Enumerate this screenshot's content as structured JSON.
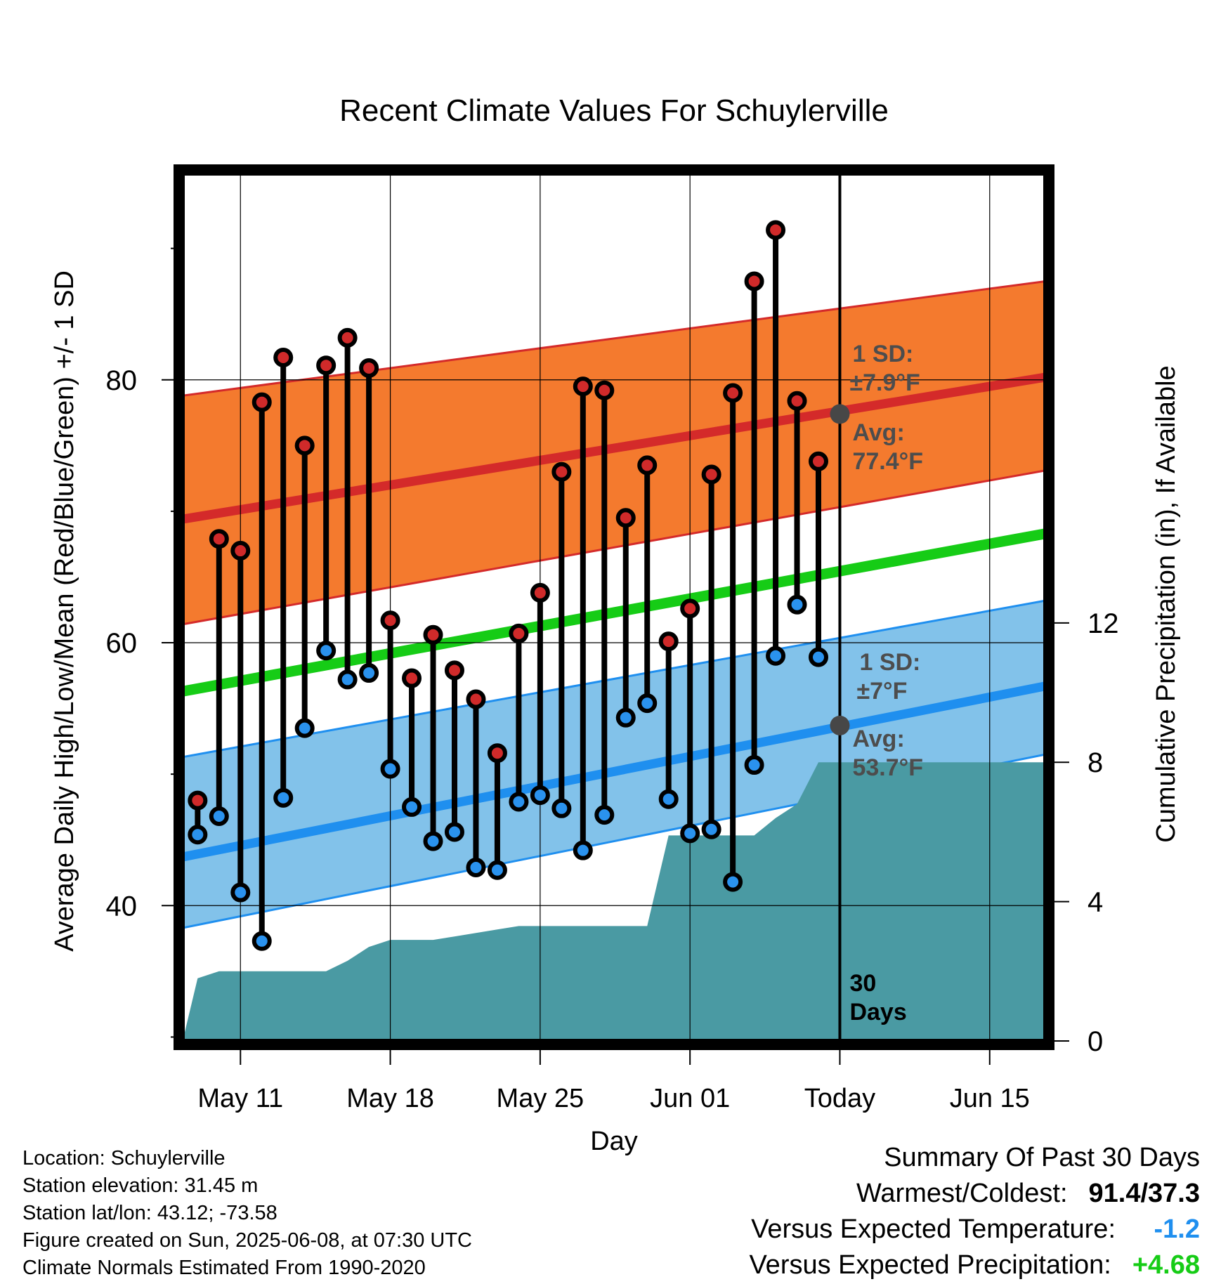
{
  "chart_data": {
    "type": "line",
    "title": "Recent Climate Values For Schuylerville",
    "xlabel": "Day",
    "ylabel_left": "Average Daily High/Low/Mean (Red/Blue/Green) +/- 1 SD",
    "ylabel_right": "Cumulative Precipitation (in), If Available",
    "x_ticks": [
      {
        "day": 11,
        "label": "May 11"
      },
      {
        "day": 18,
        "label": "May 18"
      },
      {
        "day": 25,
        "label": "May 25"
      },
      {
        "day": 32,
        "label": "Jun 01"
      },
      {
        "day": 39,
        "label": "Today"
      },
      {
        "day": 46,
        "label": "Jun 15"
      }
    ],
    "y_left_ticks": [
      40,
      60,
      80
    ],
    "y_right_ticks": [
      {
        "value": 0,
        "label": "0"
      },
      {
        "value": 4,
        "label": "4"
      },
      {
        "value": 8,
        "label": "8"
      },
      {
        "value": 12,
        "label": "12"
      }
    ],
    "xlim": [
      8.3,
      48.6
    ],
    "ylim": [
      29.7,
      95.7
    ],
    "y_right_lim": [
      0,
      24.9
    ],
    "grid": true,
    "colors": {
      "high_band": "#f47a2e",
      "high_line": "#d42a2a",
      "low_band": "#82c2ea",
      "low_line": "#1f8fef",
      "mean_line": "#16cc16",
      "precip": "#4a9aa3",
      "high_marker": "#d02a2a",
      "low_marker": "#2a92ee",
      "today_marker": "#474747"
    },
    "normals": {
      "x": [
        8.3,
        48.6
      ],
      "high_mean": [
        69.4,
        80.2
      ],
      "high_sd_upper": [
        78.8,
        87.5
      ],
      "high_sd_lower": [
        61.4,
        73.1
      ],
      "low_mean": [
        43.7,
        56.7
      ],
      "low_sd_upper": [
        51.3,
        63.2
      ],
      "low_sd_lower": [
        38.3,
        51.5
      ],
      "mean_line": [
        56.3,
        68.3
      ]
    },
    "daily": {
      "day": [
        9,
        10,
        11,
        12,
        13,
        14,
        15,
        16,
        17,
        18,
        19,
        20,
        21,
        22,
        23,
        24,
        25,
        26,
        27,
        28,
        29,
        30,
        31,
        32,
        33,
        34,
        35,
        36,
        37,
        38
      ],
      "high": [
        48.0,
        67.9,
        67.0,
        78.3,
        81.7,
        75.0,
        81.1,
        83.2,
        80.9,
        61.7,
        57.3,
        60.6,
        57.9,
        55.7,
        51.6,
        60.7,
        63.8,
        73.0,
        79.5,
        79.2,
        69.5,
        73.5,
        60.1,
        62.6,
        72.8,
        79.0,
        87.5,
        91.4,
        78.4,
        73.8
      ],
      "low": [
        45.4,
        46.8,
        41.0,
        37.3,
        48.2,
        53.5,
        59.4,
        57.2,
        57.7,
        50.4,
        47.5,
        44.9,
        45.6,
        42.9,
        42.7,
        47.9,
        48.4,
        47.4,
        44.2,
        46.9,
        54.3,
        55.4,
        48.1,
        45.5,
        45.8,
        41.8,
        50.7,
        59.0,
        62.9,
        58.9
      ]
    },
    "precip": {
      "x": [
        8.3,
        9,
        9.5,
        10,
        11,
        12,
        13,
        14,
        15,
        16,
        17,
        18,
        19,
        20,
        21,
        22,
        23,
        24,
        25,
        26,
        27,
        28,
        29,
        30,
        31,
        32,
        33,
        34,
        35,
        36,
        37,
        38,
        39,
        40,
        48.6
      ],
      "cum": [
        0,
        1.8,
        1.9,
        2.0,
        2.0,
        2.0,
        2.0,
        2.0,
        2.0,
        2.3,
        2.7,
        2.9,
        2.9,
        2.9,
        3.0,
        3.1,
        3.2,
        3.3,
        3.3,
        3.3,
        3.3,
        3.3,
        3.3,
        3.3,
        5.9,
        5.9,
        5.9,
        5.9,
        5.9,
        6.4,
        6.8,
        8.0,
        8.0,
        8.0,
        8.0
      ]
    },
    "today": {
      "high_avg": 77.4,
      "low_avg": 53.7,
      "high_sd_label": "1 SD:",
      "high_sd_value": "±7.9°F",
      "high_avg_label": "Avg:",
      "high_avg_value": "77.4°F",
      "low_sd_label": "1 SD:",
      "low_sd_value": "±7°F",
      "low_avg_label": "Avg:",
      "low_avg_value": "53.7°F",
      "days_label_1": "30",
      "days_label_2": "Days"
    }
  },
  "footer": {
    "location": "Location: Schuylerville",
    "elevation": "Station elevation: 31.45 m",
    "latlon": "Station lat/lon: 43.12; -73.58",
    "created": "Figure created on Sun, 2025-06-08, at 07:30 UTC",
    "normals_note": "Climate Normals Estimated From 1990-2020"
  },
  "summary": {
    "title": "Summary Of Past 30 Days",
    "warm_cold_label": "Warmest/Coldest:",
    "warm_cold_value": "91.4/37.3",
    "temp_label": "Versus Expected Temperature:",
    "temp_value": "-1.2",
    "temp_color": "#1f8fef",
    "precip_label": "Versus Expected Precipitation:",
    "precip_value": "+4.68",
    "precip_color": "#16cc16"
  }
}
